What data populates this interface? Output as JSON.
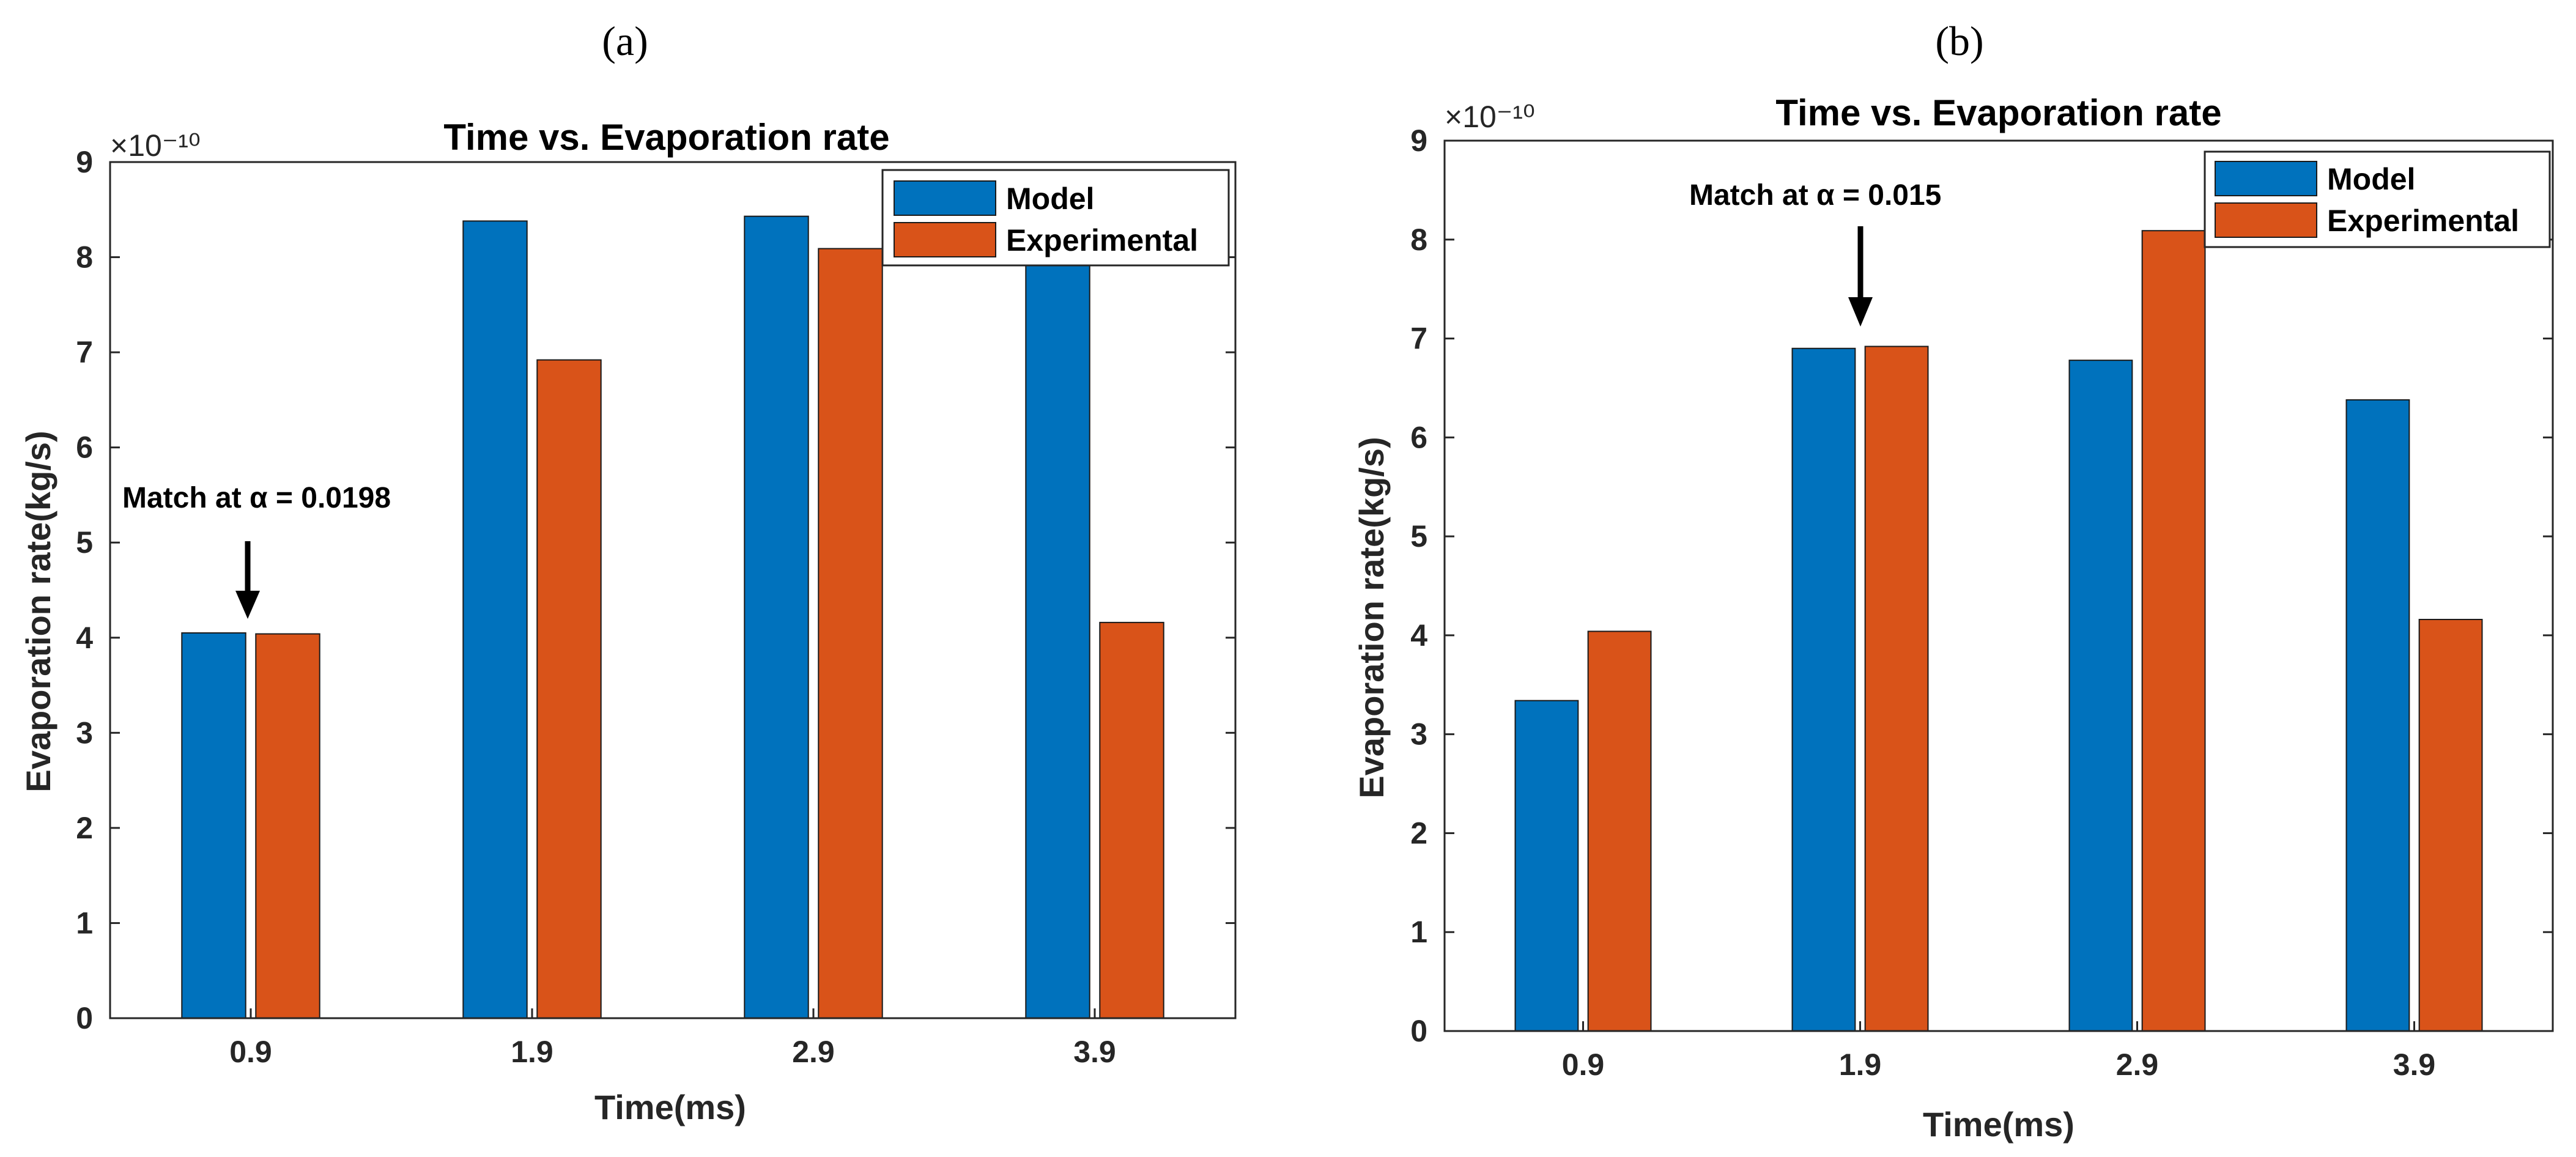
{
  "figure": {
    "panels": [
      {
        "label": "(a)",
        "annotation": "Match at α = 0.0198"
      },
      {
        "label": "(b)",
        "annotation": "Match at α = 0.015"
      }
    ]
  },
  "colors": {
    "model": "#0072BD",
    "experimental": "#D95319",
    "axis": "#262626",
    "background": "#ffffff"
  },
  "chart_data": [
    {
      "type": "bar",
      "title": "Time vs. Evaporation rate",
      "xlabel": "Time(ms)",
      "ylabel": "Evaporation rate(kg/s)",
      "exponent_label": "×10⁻¹⁰",
      "categories": [
        "0.9",
        "1.9",
        "2.9",
        "3.9"
      ],
      "ylim": [
        0,
        9
      ],
      "yticks": [
        0,
        1,
        2,
        3,
        4,
        5,
        6,
        7,
        8,
        9
      ],
      "legend": "top-right",
      "series": [
        {
          "name": "Model",
          "values": [
            4.05,
            8.38,
            8.43,
            8.1
          ]
        },
        {
          "name": "Experimental",
          "values": [
            4.04,
            6.92,
            8.09,
            4.16
          ]
        }
      ],
      "annotation": {
        "text": "Match at α = 0.0198",
        "category_index": 0,
        "series_index": 0
      }
    },
    {
      "type": "bar",
      "title": "Time vs. Evaporation rate",
      "xlabel": "Time(ms)",
      "ylabel": "Evaporation rate(kg/s)",
      "exponent_label": "×10⁻¹⁰",
      "categories": [
        "0.9",
        "1.9",
        "2.9",
        "3.9"
      ],
      "ylim": [
        0,
        9
      ],
      "yticks": [
        0,
        1,
        2,
        3,
        4,
        5,
        6,
        7,
        8,
        9
      ],
      "legend": "top-right",
      "series": [
        {
          "name": "Model",
          "values": [
            3.34,
            6.9,
            6.78,
            6.38
          ]
        },
        {
          "name": "Experimental",
          "values": [
            4.04,
            6.92,
            8.09,
            4.16
          ]
        }
      ],
      "annotation": {
        "text": "Match at α = 0.015",
        "category_index": 1,
        "series_index": 0
      }
    }
  ]
}
